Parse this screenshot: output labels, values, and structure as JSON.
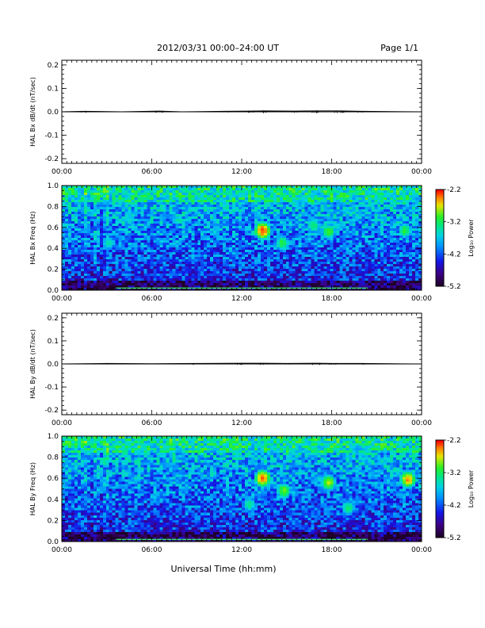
{
  "header": {
    "date_range": "2012/03/31   00:00–24:00 UT",
    "page": "Page 1/1"
  },
  "x_title": "Universal Time (hh:mm)",
  "time_ticks": [
    "00:00",
    "06:00",
    "12:00",
    "18:00",
    "00:00"
  ],
  "colorbar": {
    "label": "Log₁₀ Power",
    "ticks": [
      "-2.2",
      "-3.2",
      "-4.2",
      "-5.2"
    ],
    "range": [
      -5.2,
      -2.2
    ]
  },
  "colors": {
    "spec_low": "#1a0050",
    "spec_mid": "#00c0ff",
    "spec_high": "#ff0000"
  },
  "chart_data": [
    {
      "type": "line",
      "ylabel": "HAL Bx dB/dt (nT/sec)",
      "xlim": [
        0,
        24
      ],
      "ylim": [
        -0.22,
        0.22
      ],
      "yticks": [
        "0.2",
        "0.1",
        "0.0",
        "-0.1",
        "-0.2"
      ],
      "x": [
        0,
        1.5,
        4,
        6.5,
        8,
        10.8,
        12.5,
        13.5,
        15.5,
        17,
        18.5,
        20,
        24
      ],
      "values": [
        0.0,
        0.002,
        0.0,
        0.003,
        0.0,
        0.002,
        0.003,
        0.004,
        0.003,
        0.004,
        0.004,
        0.002,
        0.0
      ]
    },
    {
      "type": "heatmap",
      "ylabel": "HAL Bx Freq (Hz)",
      "xlim": [
        0,
        24
      ],
      "ylim": [
        0,
        1.0
      ],
      "yticks": [
        "1.0",
        "0.8",
        "0.6",
        "0.4",
        "0.2",
        "0.0"
      ],
      "features": [
        {
          "t": 13.4,
          "f": 0.57,
          "level": -2.3
        },
        {
          "t": 14.7,
          "f": 0.45,
          "level": -3.1
        },
        {
          "t": 16.8,
          "f": 0.62,
          "level": -3.2
        },
        {
          "t": 17.8,
          "f": 0.56,
          "level": -3.0
        },
        {
          "t": 22.9,
          "f": 0.57,
          "level": -3.1
        },
        {
          "t": 3.1,
          "f": 0.45,
          "level": -3.4
        }
      ]
    },
    {
      "type": "line",
      "ylabel": "HAL By dB/dt (nT/sec)",
      "xlim": [
        0,
        24
      ],
      "ylim": [
        -0.22,
        0.22
      ],
      "yticks": [
        "0.2",
        "0.1",
        "0.0",
        "-0.1",
        "-0.2"
      ],
      "x": [
        0,
        3,
        6,
        9,
        12,
        13.5,
        15,
        17,
        18,
        20,
        24
      ],
      "values": [
        0.0,
        0.002,
        0.001,
        0.002,
        0.003,
        0.003,
        0.002,
        0.003,
        0.002,
        0.002,
        0.0
      ]
    },
    {
      "type": "heatmap",
      "ylabel": "HAL By Freq (Hz)",
      "xlim": [
        0,
        24
      ],
      "ylim": [
        0,
        1.0
      ],
      "yticks": [
        "1.0",
        "0.8",
        "0.6",
        "0.4",
        "0.2",
        "0.0"
      ],
      "features": [
        {
          "t": 13.4,
          "f": 0.6,
          "level": -2.4
        },
        {
          "t": 14.8,
          "f": 0.48,
          "level": -2.9
        },
        {
          "t": 12.5,
          "f": 0.35,
          "level": -3.3
        },
        {
          "t": 17.8,
          "f": 0.56,
          "level": -2.8
        },
        {
          "t": 19.1,
          "f": 0.32,
          "level": -3.2
        },
        {
          "t": 23.1,
          "f": 0.59,
          "level": -2.5
        },
        {
          "t": 16.9,
          "f": 0.86,
          "level": -3.3
        }
      ]
    }
  ]
}
